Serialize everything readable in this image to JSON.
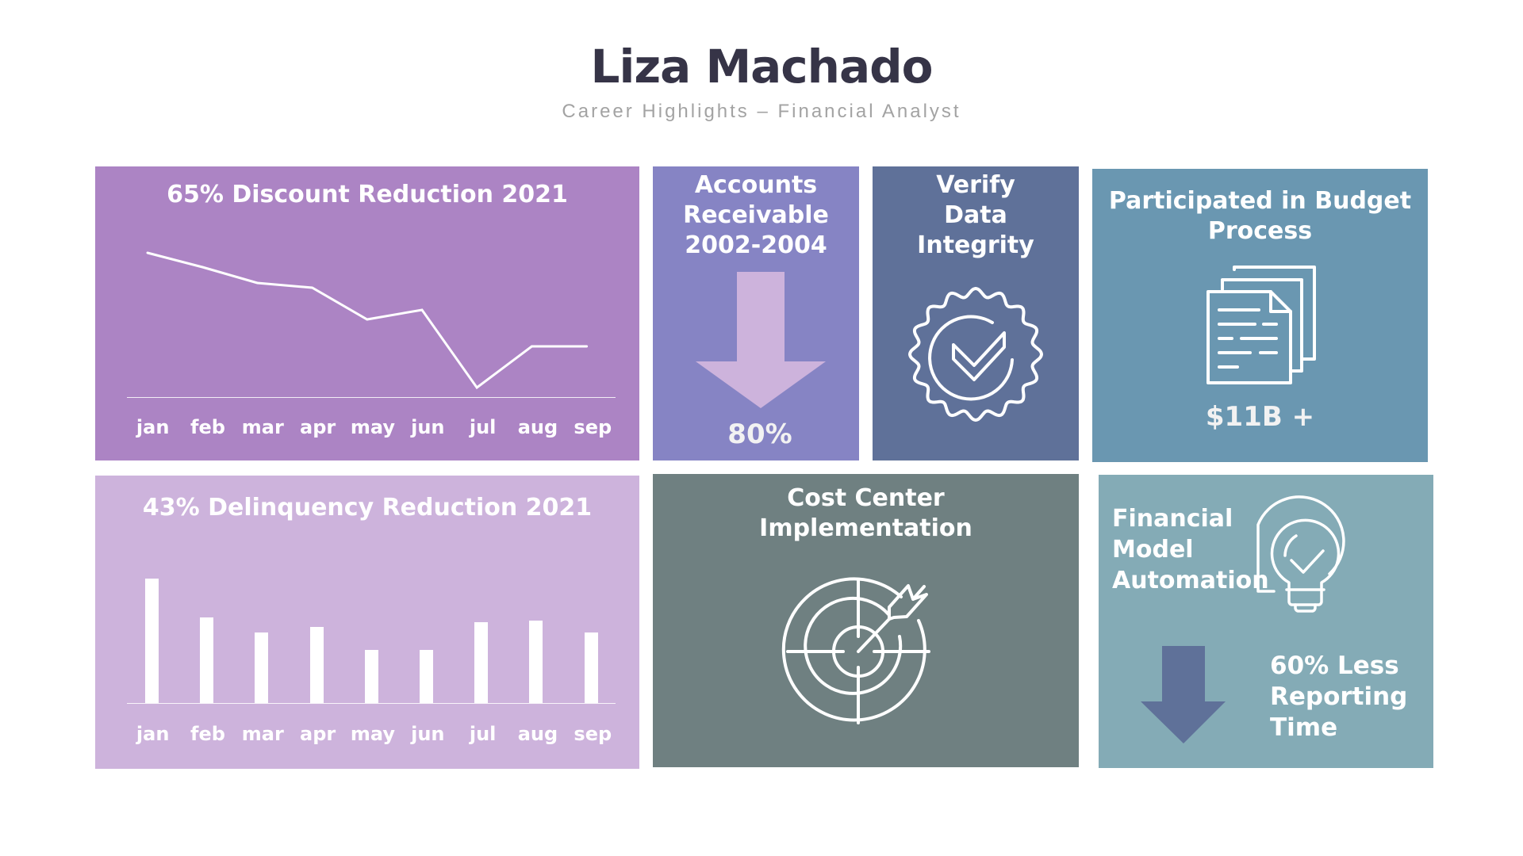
{
  "header": {
    "title": "Liza Machado",
    "subtitle": "Career Highlights – Financial Analyst"
  },
  "colors": {
    "title": "#363447",
    "subtitle": "#a3a3a3",
    "panel_discount": "#ac84c4",
    "panel_accounts": "#8684c4",
    "panel_verify": "#5f7199",
    "panel_budget": "#6a97b1",
    "panel_delinquency": "#cdb3dc",
    "panel_cost_center": "#6f8081",
    "panel_automation": "#84abb6",
    "arrow_accounts": "#cdb3dc",
    "arrow_automation": "#5f7199"
  },
  "panels": {
    "discount": {
      "title": "65% Discount Reduction 2021"
    },
    "accounts": {
      "title_lines": [
        "Accounts",
        "Receivable",
        "2002-2004"
      ],
      "value": "80%",
      "icon": "down-arrow-icon"
    },
    "verify": {
      "title_lines": [
        "Verify",
        "Data",
        "Integrity"
      ],
      "icon": "verified-badge-icon"
    },
    "budget": {
      "title_lines": [
        "Participated in Budget",
        "Process"
      ],
      "value": "$11B +",
      "icon": "documents-icon"
    },
    "delinquency": {
      "title": "43% Delinquency Reduction 2021"
    },
    "cost_center": {
      "title_lines": [
        "Cost Center",
        "Implementation"
      ],
      "icon": "target-icon"
    },
    "automation": {
      "title_lines": [
        "Financial",
        "Model",
        "Automation"
      ],
      "value_lines": [
        "60% Less",
        "Reporting",
        "Time"
      ],
      "icons": [
        "lightbulb-check-icon",
        "down-arrow-icon"
      ]
    }
  },
  "chart_data": [
    {
      "type": "line",
      "title": "65% Discount Reduction 2021",
      "categories": [
        "jan",
        "feb",
        "mar",
        "apr",
        "may",
        "jun",
        "jul",
        "aug",
        "sep"
      ],
      "values": [
        91,
        82,
        72,
        69,
        49,
        55,
        6,
        32,
        32
      ],
      "xlabel": "",
      "ylabel": "",
      "ylim": [
        0,
        100
      ],
      "grid": false,
      "legend": "none",
      "note": "values estimated relative to baseline; no y-axis shown"
    },
    {
      "type": "bar",
      "title": "43% Delinquency Reduction 2021",
      "categories": [
        "jan",
        "feb",
        "mar",
        "apr",
        "may",
        "jun",
        "jul",
        "aug",
        "sep"
      ],
      "values": [
        100,
        69,
        57,
        61,
        43,
        43,
        65,
        66,
        57
      ],
      "xlabel": "",
      "ylabel": "",
      "ylim": [
        0,
        100
      ],
      "grid": false,
      "legend": "none",
      "note": "values estimated relative to tallest bar; no y-axis shown"
    }
  ]
}
